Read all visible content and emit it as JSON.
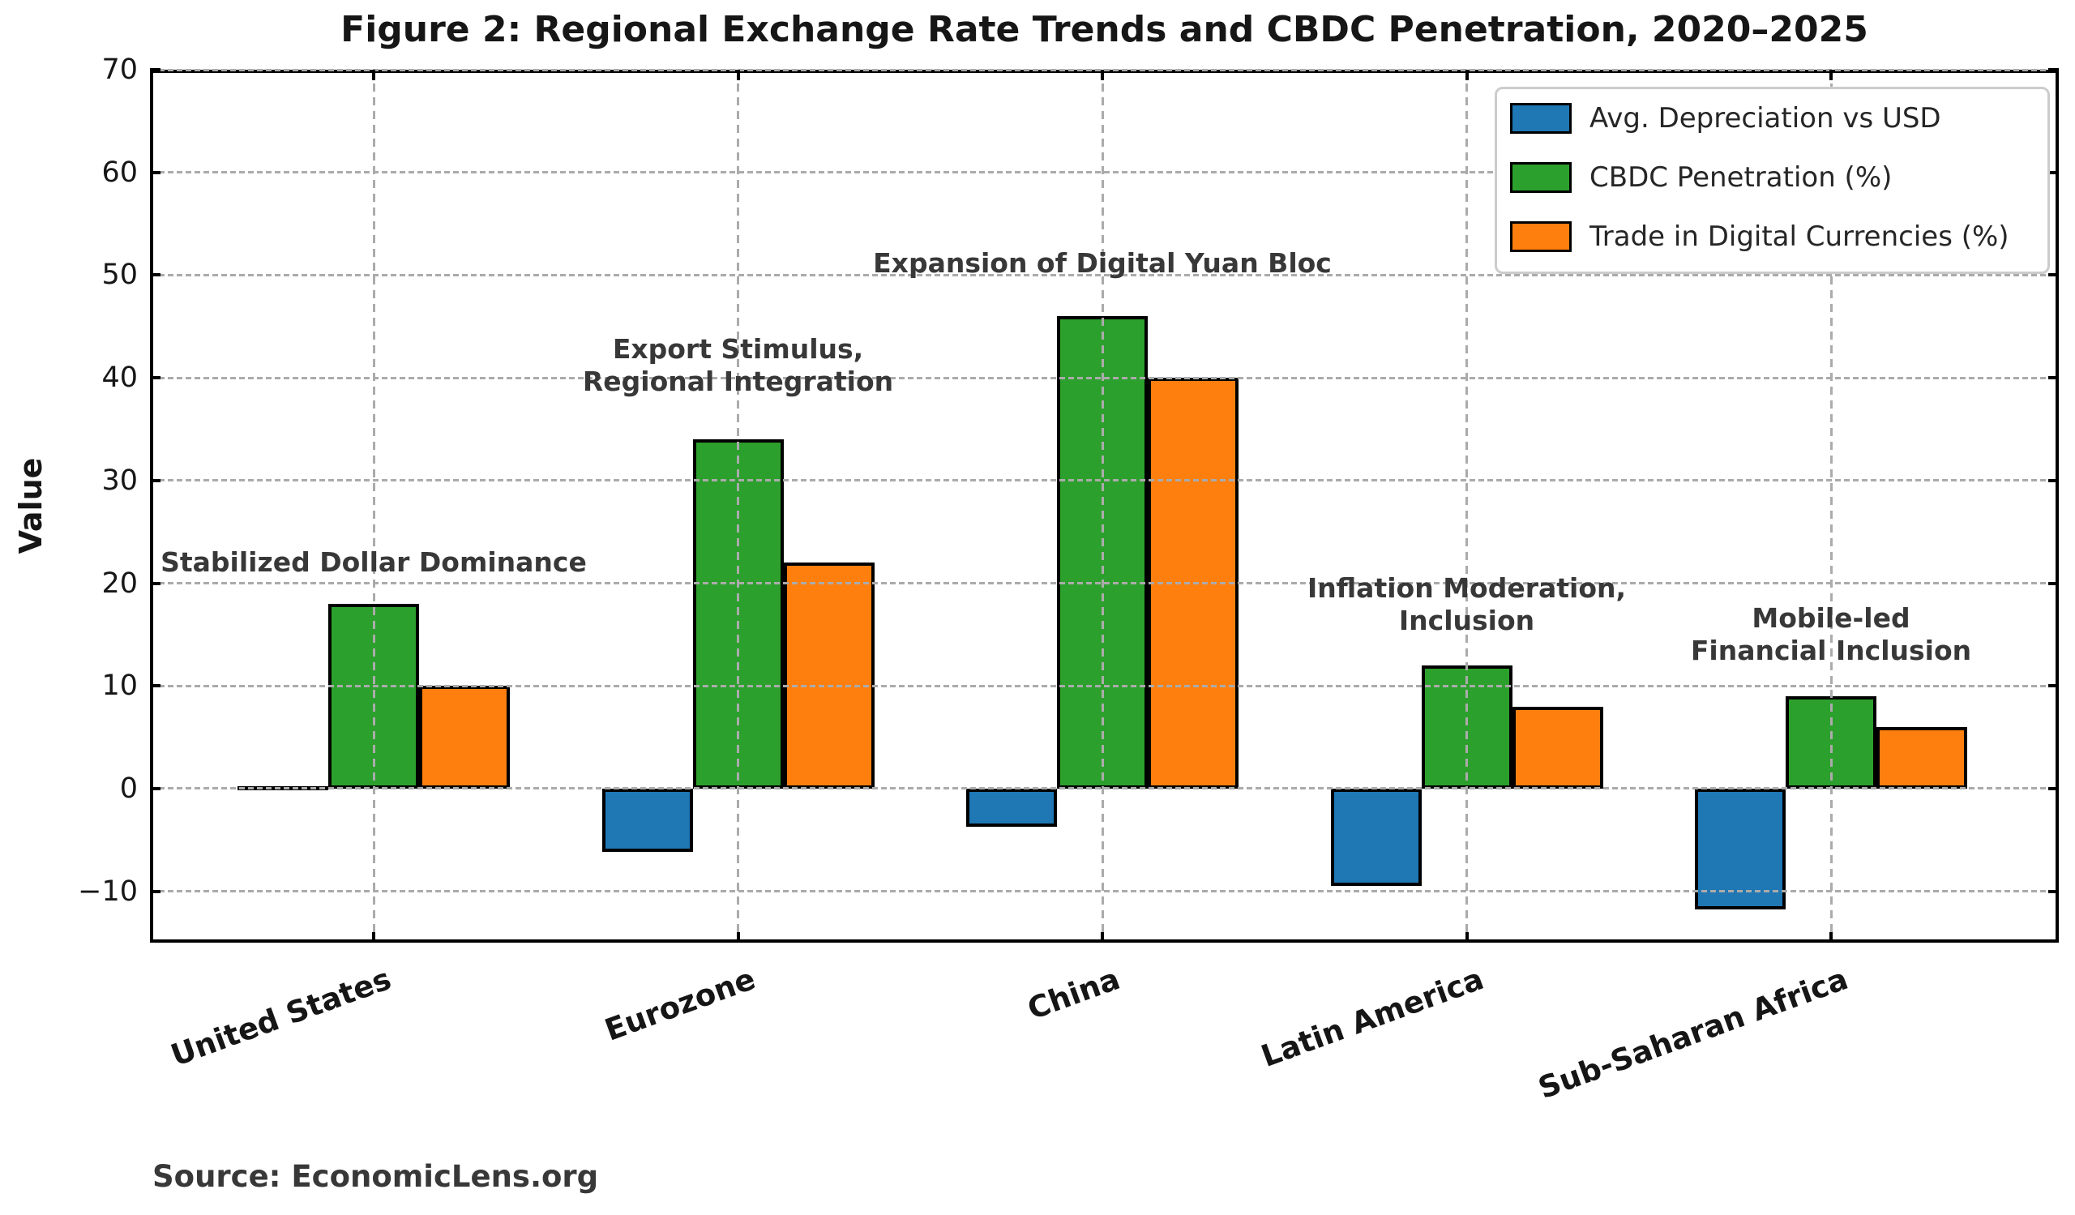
{
  "figure": {
    "title": "Figure 2: Regional Exchange Rate Trends and CBDC Penetration, 2020–2025",
    "ylabel": "Value",
    "source": "Source: EconomicLens.org"
  },
  "chart_data": {
    "type": "bar",
    "title": "Figure 2: Regional Exchange Rate Trends and CBDC Penetration, 2020–2025",
    "xlabel": "",
    "ylabel": "Value",
    "categories": [
      "United States",
      "Eurozone",
      "China",
      "Latin America",
      "Sub-Saharan Africa"
    ],
    "series": [
      {
        "name": "Avg. Depreciation vs USD",
        "color": "#1f77b4",
        "values": [
          0,
          -6.2,
          -3.7,
          -9.5,
          -11.8
        ]
      },
      {
        "name": "CBDC Penetration (%)",
        "color": "#2ca02c",
        "values": [
          18,
          34,
          46,
          12,
          9
        ]
      },
      {
        "name": "Trade in Digital Currencies (%)",
        "color": "#ff7f0e",
        "values": [
          10,
          22,
          40,
          8,
          6
        ]
      }
    ],
    "yticks": [
      70,
      60,
      50,
      40,
      30,
      20,
      10,
      0,
      -10
    ],
    "ylim": [
      -15,
      70
    ],
    "grid": true,
    "grid_style": "dashed",
    "grid_above_bars": true,
    "bar_edge_color": "#000000",
    "legend_position": "upper right",
    "xtick_rotation_deg": 20,
    "annotations": [
      {
        "x": 0,
        "y": 22,
        "lines": [
          "Stabilized Dollar Dominance"
        ]
      },
      {
        "x": 1,
        "y": 41.2,
        "lines": [
          "Export Stimulus,",
          "Regional Integration"
        ]
      },
      {
        "x": 2,
        "y": 51.1,
        "lines": [
          "Expansion of Digital Yuan Bloc"
        ]
      },
      {
        "x": 3,
        "y": 17.9,
        "lines": [
          "Inflation Moderation,",
          "Inclusion"
        ]
      },
      {
        "x": 4,
        "y": 15,
        "lines": [
          "Mobile-led",
          "Financial Inclusion"
        ]
      }
    ],
    "source_note": "Source: EconomicLens.org"
  }
}
